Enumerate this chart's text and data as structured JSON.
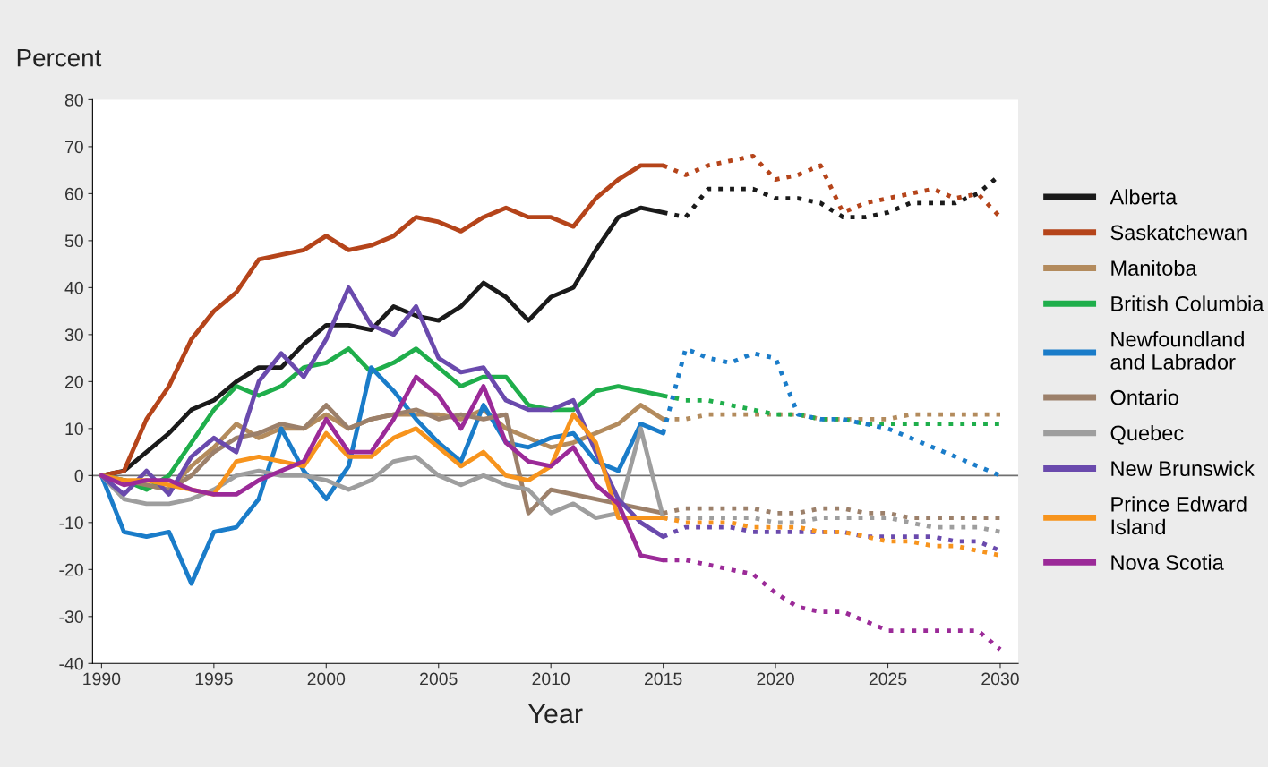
{
  "chart_data": {
    "type": "line",
    "ylabel": "Percent",
    "xlabel": "Year",
    "x": [
      1990,
      1991,
      1992,
      1993,
      1994,
      1995,
      1996,
      1997,
      1998,
      1999,
      2000,
      2001,
      2002,
      2003,
      2004,
      2005,
      2006,
      2007,
      2008,
      2009,
      2010,
      2011,
      2012,
      2013,
      2014,
      2015
    ],
    "xlim": [
      1989.6,
      2030.8
    ],
    "xticks": [
      1990,
      1995,
      2000,
      2005,
      2010,
      2015,
      2020,
      2025,
      2030
    ],
    "ylim": [
      -40,
      80
    ],
    "yticks": [
      -40,
      -30,
      -20,
      -10,
      0,
      10,
      20,
      30,
      40,
      50,
      60,
      70,
      80
    ],
    "grid": false,
    "legend": "right",
    "line_style": "solid",
    "marker": "none",
    "ref_lines": [
      {
        "axis": "y",
        "value": 0,
        "color": "#707070"
      }
    ],
    "series": [
      {
        "name": "Alberta",
        "color": "#1a1a1a",
        "values": [
          0,
          1,
          5,
          9,
          14,
          16,
          20,
          23,
          23,
          28,
          32,
          32,
          31,
          36,
          34,
          33,
          36,
          41,
          38,
          33,
          38,
          40,
          48,
          55,
          57,
          56
        ]
      },
      {
        "name": "Saskatchewan",
        "color": "#b5441a",
        "values": [
          0,
          1,
          12,
          19,
          29,
          35,
          39,
          46,
          47,
          48,
          51,
          48,
          49,
          51,
          55,
          54,
          52,
          55,
          57,
          55,
          55,
          53,
          59,
          63,
          66,
          66
        ]
      },
      {
        "name": "Manitoba",
        "color": "#b38b5d",
        "values": [
          0,
          -1,
          -2,
          -3,
          2,
          6,
          11,
          8,
          10,
          10,
          13,
          10,
          12,
          13,
          13,
          13,
          12,
          14,
          10,
          8,
          6,
          7,
          9,
          11,
          15,
          12
        ]
      },
      {
        "name": "British Columbia",
        "color": "#1fae4b",
        "values": [
          0,
          -1,
          -3,
          0,
          7,
          14,
          19,
          17,
          19,
          23,
          24,
          27,
          22,
          24,
          27,
          23,
          19,
          21,
          21,
          15,
          14,
          14,
          18,
          19,
          18,
          17
        ]
      },
      {
        "name": "Newfoundland\nand Labrador",
        "color": "#1a7cc9",
        "values": [
          0,
          -12,
          -13,
          -12,
          -23,
          -12,
          -11,
          -5,
          10,
          1,
          -5,
          2,
          23,
          18,
          12,
          7,
          3,
          15,
          7,
          6,
          8,
          9,
          3,
          1,
          11,
          9
        ]
      },
      {
        "name": "Ontario",
        "color": "#9c806a",
        "values": [
          0,
          -1,
          -2,
          -3,
          0,
          5,
          8,
          9,
          11,
          10,
          15,
          10,
          12,
          13,
          14,
          12,
          13,
          12,
          13,
          -8,
          -3,
          -4,
          -5,
          -6,
          -7,
          -8
        ]
      },
      {
        "name": "Quebec",
        "color": "#9e9e9e",
        "values": [
          0,
          -5,
          -6,
          -6,
          -5,
          -3,
          0,
          1,
          0,
          0,
          -1,
          -3,
          -1,
          3,
          4,
          0,
          -2,
          0,
          -2,
          -3,
          -8,
          -6,
          -9,
          -8,
          10,
          -9
        ]
      },
      {
        "name": "New Brunswick",
        "color": "#6a4aad",
        "values": [
          0,
          -4,
          1,
          -4,
          4,
          8,
          5,
          20,
          26,
          21,
          29,
          40,
          32,
          30,
          36,
          25,
          22,
          23,
          16,
          14,
          14,
          16,
          5,
          -5,
          -10,
          -13
        ]
      },
      {
        "name": "Prince Edward\nIsland",
        "color": "#f7941d",
        "values": [
          0,
          -1,
          -1,
          -2,
          -3,
          -4,
          3,
          4,
          3,
          2,
          9,
          4,
          4,
          8,
          10,
          6,
          2,
          5,
          0,
          -1,
          2,
          13,
          7,
          -9,
          -9,
          -9
        ]
      },
      {
        "name": "Nova Scotia",
        "color": "#9b2a98",
        "values": [
          0,
          -2,
          -1,
          -1,
          -3,
          -4,
          -4,
          -1,
          1,
          3,
          12,
          5,
          5,
          12,
          21,
          17,
          10,
          19,
          7,
          3,
          2,
          6,
          -2,
          -6,
          -17,
          -18
        ]
      },
      {
        "color": "#1a1a1a",
        "line_style": "dotted",
        "x": [
          2015,
          2016,
          2017,
          2018,
          2019,
          2020,
          2021,
          2022,
          2023,
          2024,
          2025,
          2026,
          2027,
          2028,
          2029,
          2030
        ],
        "values": [
          56,
          55,
          61,
          61,
          61,
          59,
          59,
          58,
          55,
          55,
          56,
          58,
          58,
          58,
          60,
          64
        ]
      },
      {
        "color": "#b5441a",
        "line_style": "dotted",
        "x": [
          2015,
          2016,
          2017,
          2018,
          2019,
          2020,
          2021,
          2022,
          2023,
          2024,
          2025,
          2026,
          2027,
          2028,
          2029,
          2030
        ],
        "values": [
          66,
          64,
          66,
          67,
          68,
          63,
          64,
          66,
          56,
          58,
          59,
          60,
          61,
          59,
          60,
          55
        ]
      },
      {
        "color": "#b38b5d",
        "line_style": "dotted",
        "x": [
          2015,
          2016,
          2017,
          2018,
          2019,
          2020,
          2021,
          2022,
          2023,
          2024,
          2025,
          2026,
          2027,
          2028,
          2029,
          2030
        ],
        "values": [
          12,
          12,
          13,
          13,
          13,
          13,
          13,
          12,
          12,
          12,
          12,
          13,
          13,
          13,
          13,
          13
        ]
      },
      {
        "color": "#1fae4b",
        "line_style": "dotted",
        "x": [
          2015,
          2016,
          2017,
          2018,
          2019,
          2020,
          2021,
          2022,
          2023,
          2024,
          2025,
          2026,
          2027,
          2028,
          2029,
          2030
        ],
        "values": [
          17,
          16,
          16,
          15,
          14,
          13,
          13,
          12,
          12,
          11,
          11,
          11,
          11,
          11,
          11,
          11
        ]
      },
      {
        "color": "#1a7cc9",
        "line_style": "dotted",
        "x": [
          2015,
          2016,
          2017,
          2018,
          2019,
          2020,
          2021,
          2022,
          2023,
          2024,
          2025,
          2026,
          2027,
          2028,
          2029,
          2030
        ],
        "values": [
          9,
          27,
          25,
          24,
          26,
          25,
          13,
          12,
          12,
          11,
          10,
          8,
          6,
          4,
          2,
          0
        ]
      },
      {
        "color": "#9c806a",
        "line_style": "dotted",
        "x": [
          2015,
          2016,
          2017,
          2018,
          2019,
          2020,
          2021,
          2022,
          2023,
          2024,
          2025,
          2026,
          2027,
          2028,
          2029,
          2030
        ],
        "values": [
          -8,
          -7,
          -7,
          -7,
          -7,
          -8,
          -8,
          -7,
          -7,
          -8,
          -8,
          -9,
          -9,
          -9,
          -9,
          -9
        ]
      },
      {
        "color": "#9e9e9e",
        "line_style": "dotted",
        "x": [
          2015,
          2016,
          2017,
          2018,
          2019,
          2020,
          2021,
          2022,
          2023,
          2024,
          2025,
          2026,
          2027,
          2028,
          2029,
          2030
        ],
        "values": [
          -9,
          -9,
          -9,
          -9,
          -9,
          -10,
          -10,
          -9,
          -9,
          -9,
          -9,
          -10,
          -11,
          -11,
          -11,
          -12
        ]
      },
      {
        "color": "#6a4aad",
        "line_style": "dotted",
        "x": [
          2015,
          2016,
          2017,
          2018,
          2019,
          2020,
          2021,
          2022,
          2023,
          2024,
          2025,
          2026,
          2027,
          2028,
          2029,
          2030
        ],
        "values": [
          -13,
          -11,
          -11,
          -11,
          -12,
          -12,
          -12,
          -12,
          -12,
          -13,
          -13,
          -13,
          -13,
          -14,
          -14,
          -16
        ]
      },
      {
        "color": "#f7941d",
        "line_style": "dotted",
        "x": [
          2015,
          2016,
          2017,
          2018,
          2019,
          2020,
          2021,
          2022,
          2023,
          2024,
          2025,
          2026,
          2027,
          2028,
          2029,
          2030
        ],
        "values": [
          -9,
          -10,
          -10,
          -10,
          -11,
          -11,
          -11,
          -12,
          -12,
          -13,
          -14,
          -14,
          -15,
          -15,
          -16,
          -17
        ]
      },
      {
        "color": "#9b2a98",
        "line_style": "dotted",
        "x": [
          2015,
          2016,
          2017,
          2018,
          2019,
          2020,
          2021,
          2022,
          2023,
          2024,
          2025,
          2026,
          2027,
          2028,
          2029,
          2030
        ],
        "values": [
          -18,
          -18,
          -19,
          -20,
          -21,
          -25,
          -28,
          -29,
          -29,
          -31,
          -33,
          -33,
          -33,
          -33,
          -33,
          -37
        ]
      }
    ]
  }
}
